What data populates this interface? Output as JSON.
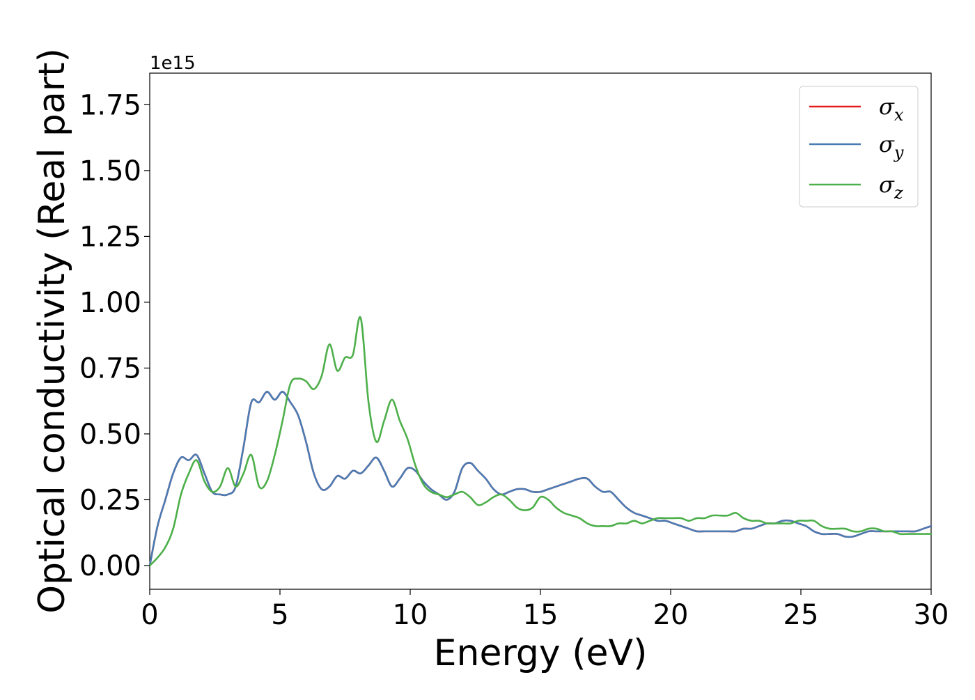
{
  "chart_data": {
    "type": "line",
    "xlabel": "Energy (eV)",
    "ylabel": "Optical conductivity (Real part)",
    "y_offset_text": "1e15",
    "xlim": [
      0,
      30
    ],
    "ylim": [
      -0.09,
      1.87
    ],
    "xticks": [
      0,
      5,
      10,
      15,
      20,
      25,
      30
    ],
    "xtick_labels": [
      "0",
      "5",
      "10",
      "15",
      "20",
      "25",
      "30"
    ],
    "yticks": [
      0.0,
      0.25,
      0.5,
      0.75,
      1.0,
      1.25,
      1.5,
      1.75
    ],
    "ytick_labels": [
      "0.00",
      "0.25",
      "0.50",
      "0.75",
      "1.00",
      "1.25",
      "1.50",
      "1.75"
    ],
    "grid": false,
    "legend_position": "top-right",
    "series": [
      {
        "name": "σx",
        "name_base": "σ",
        "name_sub": "x",
        "color": "#e41a1c",
        "x": [
          0,
          0.3,
          0.6,
          0.9,
          1.2,
          1.5,
          1.8,
          2.1,
          2.4,
          2.7,
          3.0,
          3.3,
          3.6,
          3.9,
          4.2,
          4.5,
          4.8,
          5.1,
          5.4,
          5.7,
          6.0,
          6.3,
          6.6,
          6.9,
          7.2,
          7.5,
          7.8,
          8.1,
          8.4,
          8.7,
          9.0,
          9.3,
          9.6,
          9.9,
          10.2,
          10.5,
          10.8,
          11.1,
          11.4,
          11.7,
          12.0,
          12.3,
          12.6,
          12.9,
          13.2,
          13.5,
          13.8,
          14.1,
          14.4,
          14.7,
          15.0,
          15.3,
          15.6,
          15.9,
          16.2,
          16.5,
          16.8,
          17.1,
          17.4,
          17.7,
          18.0,
          18.3,
          18.6,
          18.9,
          19.2,
          19.5,
          19.8,
          20.1,
          20.4,
          20.7,
          21.0,
          21.3,
          21.6,
          21.9,
          22.2,
          22.5,
          22.8,
          23.1,
          23.4,
          23.7,
          24.0,
          24.3,
          24.6,
          24.9,
          25.2,
          25.5,
          25.8,
          26.1,
          26.4,
          26.7,
          27.0,
          27.3,
          27.6,
          27.9,
          28.2,
          28.5,
          28.8,
          29.1,
          29.4,
          29.7,
          30.0
        ],
        "values": [
          0.0,
          0.15,
          0.25,
          0.35,
          0.41,
          0.4,
          0.42,
          0.35,
          0.28,
          0.27,
          0.27,
          0.3,
          0.45,
          0.62,
          0.62,
          0.66,
          0.63,
          0.66,
          0.62,
          0.57,
          0.47,
          0.35,
          0.29,
          0.3,
          0.34,
          0.33,
          0.36,
          0.35,
          0.38,
          0.41,
          0.36,
          0.3,
          0.33,
          0.37,
          0.36,
          0.32,
          0.29,
          0.27,
          0.25,
          0.28,
          0.37,
          0.39,
          0.36,
          0.33,
          0.29,
          0.27,
          0.28,
          0.29,
          0.29,
          0.28,
          0.28,
          0.29,
          0.3,
          0.31,
          0.32,
          0.33,
          0.33,
          0.3,
          0.28,
          0.28,
          0.25,
          0.22,
          0.2,
          0.19,
          0.18,
          0.17,
          0.17,
          0.16,
          0.15,
          0.14,
          0.13,
          0.13,
          0.13,
          0.13,
          0.13,
          0.13,
          0.14,
          0.14,
          0.15,
          0.16,
          0.16,
          0.17,
          0.17,
          0.16,
          0.15,
          0.13,
          0.12,
          0.12,
          0.12,
          0.11,
          0.11,
          0.12,
          0.13,
          0.13,
          0.13,
          0.13,
          0.13,
          0.13,
          0.13,
          0.14,
          0.15
        ]
      },
      {
        "name": "σy",
        "name_base": "σ",
        "name_sub": "y",
        "color": "#4a7cb4",
        "x": [
          0,
          0.3,
          0.6,
          0.9,
          1.2,
          1.5,
          1.8,
          2.1,
          2.4,
          2.7,
          3.0,
          3.3,
          3.6,
          3.9,
          4.2,
          4.5,
          4.8,
          5.1,
          5.4,
          5.7,
          6.0,
          6.3,
          6.6,
          6.9,
          7.2,
          7.5,
          7.8,
          8.1,
          8.4,
          8.7,
          9.0,
          9.3,
          9.6,
          9.9,
          10.2,
          10.5,
          10.8,
          11.1,
          11.4,
          11.7,
          12.0,
          12.3,
          12.6,
          12.9,
          13.2,
          13.5,
          13.8,
          14.1,
          14.4,
          14.7,
          15.0,
          15.3,
          15.6,
          15.9,
          16.2,
          16.5,
          16.8,
          17.1,
          17.4,
          17.7,
          18.0,
          18.3,
          18.6,
          18.9,
          19.2,
          19.5,
          19.8,
          20.1,
          20.4,
          20.7,
          21.0,
          21.3,
          21.6,
          21.9,
          22.2,
          22.5,
          22.8,
          23.1,
          23.4,
          23.7,
          24.0,
          24.3,
          24.6,
          24.9,
          25.2,
          25.5,
          25.8,
          26.1,
          26.4,
          26.7,
          27.0,
          27.3,
          27.6,
          27.9,
          28.2,
          28.5,
          28.8,
          29.1,
          29.4,
          29.7,
          30.0
        ],
        "values": [
          0.0,
          0.15,
          0.25,
          0.35,
          0.41,
          0.4,
          0.42,
          0.35,
          0.28,
          0.27,
          0.27,
          0.3,
          0.45,
          0.62,
          0.62,
          0.66,
          0.63,
          0.66,
          0.62,
          0.57,
          0.47,
          0.35,
          0.29,
          0.3,
          0.34,
          0.33,
          0.36,
          0.35,
          0.38,
          0.41,
          0.36,
          0.3,
          0.33,
          0.37,
          0.36,
          0.32,
          0.29,
          0.27,
          0.25,
          0.28,
          0.37,
          0.39,
          0.36,
          0.33,
          0.29,
          0.27,
          0.28,
          0.29,
          0.29,
          0.28,
          0.28,
          0.29,
          0.3,
          0.31,
          0.32,
          0.33,
          0.33,
          0.3,
          0.28,
          0.28,
          0.25,
          0.22,
          0.2,
          0.19,
          0.18,
          0.17,
          0.17,
          0.16,
          0.15,
          0.14,
          0.13,
          0.13,
          0.13,
          0.13,
          0.13,
          0.13,
          0.14,
          0.14,
          0.15,
          0.16,
          0.16,
          0.17,
          0.17,
          0.16,
          0.15,
          0.13,
          0.12,
          0.12,
          0.12,
          0.11,
          0.11,
          0.12,
          0.13,
          0.13,
          0.13,
          0.13,
          0.13,
          0.13,
          0.13,
          0.14,
          0.15
        ]
      },
      {
        "name": "σz",
        "name_base": "σ",
        "name_sub": "z",
        "color": "#4daf4a",
        "x": [
          0,
          0.3,
          0.6,
          0.9,
          1.2,
          1.5,
          1.8,
          2.1,
          2.4,
          2.7,
          3.0,
          3.3,
          3.6,
          3.9,
          4.2,
          4.5,
          4.8,
          5.1,
          5.4,
          5.7,
          6.0,
          6.3,
          6.6,
          6.9,
          7.2,
          7.5,
          7.8,
          8.1,
          8.4,
          8.7,
          9.0,
          9.3,
          9.6,
          9.9,
          10.2,
          10.5,
          10.8,
          11.1,
          11.4,
          11.7,
          12.0,
          12.3,
          12.6,
          12.9,
          13.2,
          13.5,
          13.8,
          14.1,
          14.4,
          14.7,
          15.0,
          15.3,
          15.6,
          15.9,
          16.2,
          16.5,
          16.8,
          17.1,
          17.4,
          17.7,
          18.0,
          18.3,
          18.6,
          18.9,
          19.2,
          19.5,
          19.8,
          20.1,
          20.4,
          20.7,
          21.0,
          21.3,
          21.6,
          21.9,
          22.2,
          22.5,
          22.8,
          23.1,
          23.4,
          23.7,
          24.0,
          24.3,
          24.6,
          24.9,
          25.2,
          25.5,
          25.8,
          26.1,
          26.4,
          26.7,
          27.0,
          27.3,
          27.6,
          27.9,
          28.2,
          28.5,
          28.8,
          29.1,
          29.4,
          29.7,
          30.0
        ],
        "values": [
          0.0,
          0.03,
          0.07,
          0.14,
          0.27,
          0.35,
          0.4,
          0.32,
          0.28,
          0.3,
          0.37,
          0.3,
          0.35,
          0.42,
          0.3,
          0.32,
          0.42,
          0.55,
          0.69,
          0.71,
          0.7,
          0.67,
          0.72,
          0.84,
          0.74,
          0.79,
          0.8,
          0.94,
          0.62,
          0.47,
          0.55,
          0.63,
          0.55,
          0.48,
          0.38,
          0.31,
          0.28,
          0.27,
          0.26,
          0.27,
          0.28,
          0.26,
          0.23,
          0.24,
          0.26,
          0.27,
          0.25,
          0.22,
          0.21,
          0.22,
          0.26,
          0.25,
          0.22,
          0.2,
          0.19,
          0.18,
          0.16,
          0.15,
          0.15,
          0.15,
          0.16,
          0.16,
          0.17,
          0.16,
          0.17,
          0.18,
          0.18,
          0.18,
          0.18,
          0.17,
          0.18,
          0.18,
          0.19,
          0.19,
          0.19,
          0.2,
          0.18,
          0.17,
          0.17,
          0.16,
          0.16,
          0.16,
          0.16,
          0.17,
          0.17,
          0.17,
          0.15,
          0.14,
          0.14,
          0.14,
          0.13,
          0.13,
          0.14,
          0.14,
          0.13,
          0.13,
          0.12,
          0.12,
          0.12,
          0.12,
          0.12
        ]
      }
    ]
  }
}
